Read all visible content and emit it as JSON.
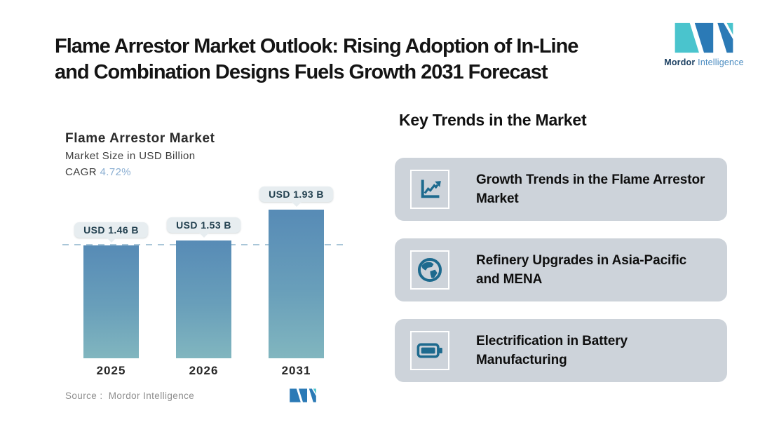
{
  "page": {
    "title_lines": [
      "Flame Arrestor Market Outlook: Rising Adoption of In-Line",
      "and Combination Designs Fuels Growth 2031 Forecast"
    ]
  },
  "brand": {
    "name_bold": "Mordor",
    "name_light": "Intelligence",
    "teal": "#4ac4cd",
    "blue": "#2b7ab6"
  },
  "chart_data": {
    "type": "bar",
    "title": "Flame Arrestor Market",
    "subtitle": "Market Size in USD Billion",
    "cagr_label": "CAGR",
    "cagr_value": "4.72%",
    "categories": [
      "2025",
      "2026",
      "2031"
    ],
    "values": [
      1.46,
      1.53,
      1.93
    ],
    "value_labels": [
      "USD 1.46 B",
      "USD 1.53 B",
      "USD 1.93 B"
    ],
    "unit": "USD Billion",
    "ylim": [
      0,
      2.2
    ],
    "reference_line_value": 1.46,
    "grid": "off",
    "legend": "none",
    "source": "Source :  Mordor Intelligence",
    "colors": {
      "bar_top": "#578bb6",
      "bar_bottom": "#81b6bf",
      "dashed_line": "#a9c6d8",
      "label_pill_bg": "#e7edf0",
      "cagr_value": "#8aaed2"
    }
  },
  "trends": {
    "heading": "Key Trends in the Market",
    "card_bg": "#cdd3da",
    "icon_color": "#1d6a8e",
    "cards": [
      {
        "icon": "line-chart-icon",
        "text": "Growth Trends in the Flame Arrestor Market"
      },
      {
        "icon": "globe-icon",
        "text": "Refinery Upgrades in Asia-Pacific and MENA"
      },
      {
        "icon": "battery-icon",
        "text": "Electrification in Battery Manufacturing"
      }
    ]
  }
}
